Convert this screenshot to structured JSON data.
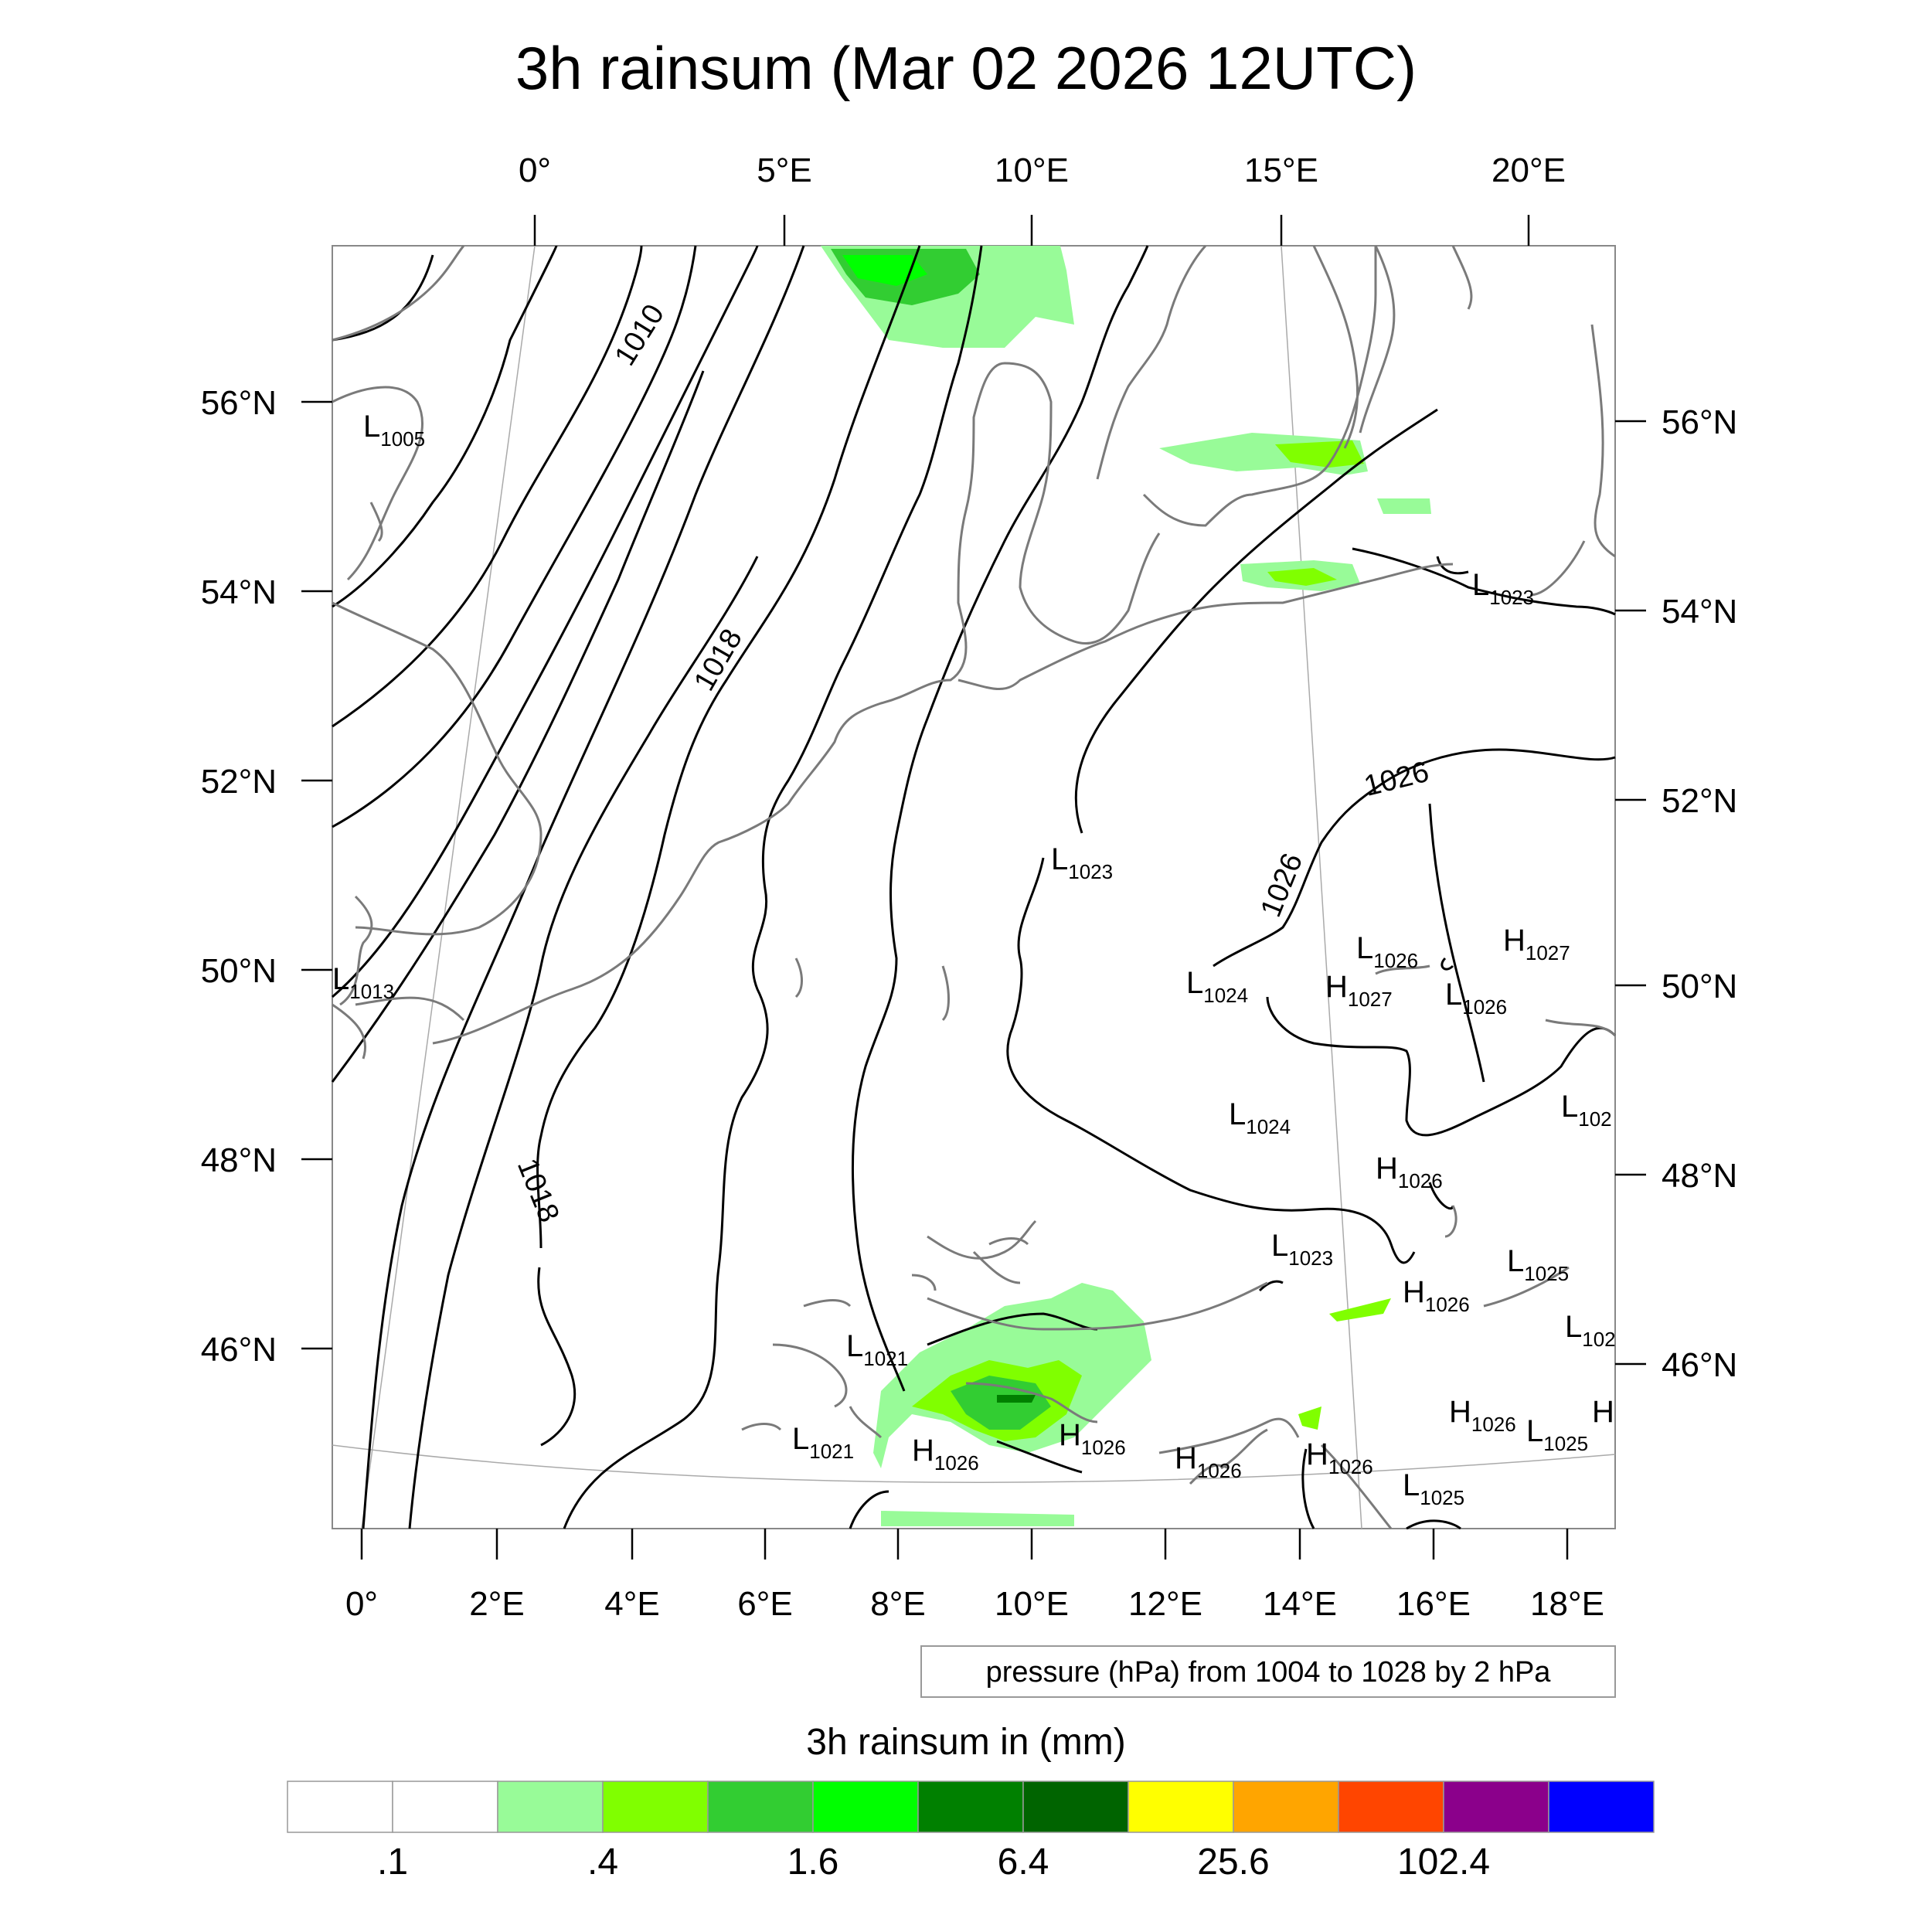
{
  "title": "3h rainsum (Mar 02 2026 12UTC)",
  "lon_labels_top": [
    "0°",
    "5°E",
    "10°E",
    "15°E",
    "20°E"
  ],
  "lat_labels_left": [
    "56°N",
    "54°N",
    "52°N",
    "50°N",
    "48°N",
    "46°N"
  ],
  "lat_labels_right": [
    "56°N",
    "54°N",
    "52°N",
    "50°N",
    "48°N",
    "46°N"
  ],
  "lon_labels_bottom": [
    "0°",
    "2°E",
    "4°E",
    "6°E",
    "8°E",
    "10°E",
    "12°E",
    "14°E",
    "16°E",
    "18°E"
  ],
  "isobar_labels": [
    "1010",
    "1018",
    "1018",
    "1026",
    "1026"
  ],
  "pressure_centers": [
    {
      "type": "L",
      "value": "1005"
    },
    {
      "type": "L",
      "value": "1013"
    },
    {
      "type": "L",
      "value": "1023"
    },
    {
      "type": "L",
      "value": "1023"
    },
    {
      "type": "L",
      "value": "1026"
    },
    {
      "type": "H",
      "value": "1027"
    },
    {
      "type": "L",
      "value": "1024"
    },
    {
      "type": "H",
      "value": "1027"
    },
    {
      "type": "L",
      "value": "1026"
    },
    {
      "type": "L",
      "value": "1024"
    },
    {
      "type": "L",
      "value": "102"
    },
    {
      "type": "H",
      "value": "1026"
    },
    {
      "type": "L",
      "value": "1023"
    },
    {
      "type": "L",
      "value": "1025"
    },
    {
      "type": "H",
      "value": "1026"
    },
    {
      "type": "L",
      "value": "102"
    },
    {
      "type": "L",
      "value": "1021"
    },
    {
      "type": "L",
      "value": "1021"
    },
    {
      "type": "H",
      "value": "1026"
    },
    {
      "type": "H",
      "value": "1026"
    },
    {
      "type": "H",
      "value": "1026"
    },
    {
      "type": "H",
      "value": "1026"
    },
    {
      "type": "H",
      "value": "1026"
    },
    {
      "type": "L",
      "value": "1025"
    },
    {
      "type": "L",
      "value": "1025"
    },
    {
      "type": "H",
      "value": ""
    }
  ],
  "info_box": "pressure (hPa) from 1004 to 1028 by 2 hPa",
  "colorbar": {
    "title": "3h rainsum in (mm)",
    "colors": [
      "#ffffff",
      "#ffffff",
      "#98fb98",
      "#80ff00",
      "#32cd32",
      "#00ff00",
      "#008000",
      "#006400",
      "#ffff00",
      "#ffa500",
      "#ff4500",
      "#8b008b",
      "#0000ff"
    ],
    "tick_labels": [
      ".1",
      ".4",
      "1.6",
      "6.4",
      "25.6",
      "102.4"
    ]
  }
}
